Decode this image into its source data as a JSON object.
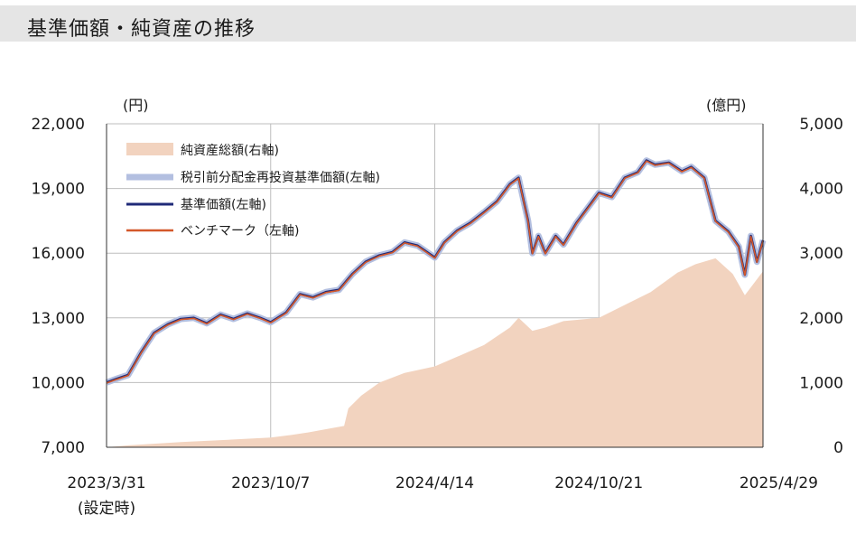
{
  "header": {
    "title": "基準価額・純資産の推移"
  },
  "chart_data": {
    "type": "line",
    "left_unit": "(円)",
    "right_unit": "(億円)",
    "y_left": {
      "min": 7000,
      "max": 22000,
      "ticks": [
        "22,000",
        "19,000",
        "16,000",
        "13,000",
        "10,000",
        "7,000"
      ]
    },
    "y_right": {
      "min": 0,
      "max": 5000,
      "ticks": [
        "5,000",
        "4,000",
        "3,000",
        "2,000",
        "1,000",
        "0"
      ]
    },
    "x_ticks": [
      "2023/3/31",
      "2023/10/7",
      "2024/4/14",
      "2024/10/21",
      "2025/4/29"
    ],
    "x_note": "(設定時)",
    "legend": [
      {
        "label": "純資産総額(右軸)",
        "color": "#f2d3bf",
        "kind": "area"
      },
      {
        "label": "税引前分配金再投資基準価額(左軸)",
        "color": "#b3bfe0",
        "kind": "line"
      },
      {
        "label": "基準価額(左軸)",
        "color": "#1f2a78",
        "kind": "line"
      },
      {
        "label": "ベンチマーク（左軸)",
        "color": "#d4582a",
        "kind": "line"
      }
    ],
    "series": [
      {
        "name": "基準価額",
        "x": [
          "2023/3/31",
          "2023/4/10",
          "2023/4/25",
          "2023/5/10",
          "2023/5/25",
          "2023/6/10",
          "2023/6/25",
          "2023/7/10",
          "2023/7/25",
          "2023/8/10",
          "2023/8/25",
          "2023/9/10",
          "2023/9/25",
          "2023/10/7",
          "2023/10/25",
          "2023/11/10",
          "2023/11/25",
          "2023/12/10",
          "2023/12/25",
          "2024/1/10",
          "2024/1/25",
          "2024/2/10",
          "2024/2/25",
          "2024/3/10",
          "2024/3/25",
          "2024/4/14",
          "2024/4/25",
          "2024/5/10",
          "2024/5/25",
          "2024/6/10",
          "2024/6/25",
          "2024/7/10",
          "2024/7/20",
          "2024/7/31",
          "2024/8/5",
          "2024/8/12",
          "2024/8/20",
          "2024/9/1",
          "2024/9/10",
          "2024/9/25",
          "2024/10/10",
          "2024/10/21",
          "2024/11/5",
          "2024/11/20",
          "2024/12/5",
          "2024/12/15",
          "2024/12/25",
          "2025/1/10",
          "2025/1/25",
          "2025/2/5",
          "2025/2/20",
          "2025/3/5",
          "2025/3/20",
          "2025/4/1",
          "2025/4/8",
          "2025/4/15",
          "2025/4/22",
          "2025/4/29"
        ],
        "values": [
          10000,
          10150,
          10350,
          11400,
          12300,
          12700,
          12950,
          13000,
          12750,
          13150,
          12950,
          13200,
          13000,
          12800,
          13250,
          14100,
          13950,
          14200,
          14300,
          15050,
          15600,
          15900,
          16050,
          16500,
          16350,
          15800,
          16500,
          17050,
          17400,
          17900,
          18400,
          19200,
          19500,
          17500,
          16000,
          16800,
          16000,
          16800,
          16400,
          17400,
          18200,
          18800,
          18600,
          19500,
          19750,
          20300,
          20100,
          20200,
          19800,
          20000,
          19500,
          17500,
          17000,
          16300,
          15000,
          16800,
          15600,
          16600
        ]
      }
    ],
    "net_assets": {
      "name": "純資産総額",
      "x": [
        "2023/3/31",
        "2023/4/25",
        "2023/6/25",
        "2023/8/25",
        "2023/10/7",
        "2023/10/31",
        "2023/11/20",
        "2023/12/10",
        "2023/12/31",
        "2024/1/5",
        "2024/1/20",
        "2024/2/10",
        "2024/3/10",
        "2024/4/14",
        "2024/5/10",
        "2024/6/10",
        "2024/7/10",
        "2024/7/20",
        "2024/8/5",
        "2024/8/20",
        "2024/9/10",
        "2024/10/21",
        "2024/11/20",
        "2024/12/20",
        "2025/1/20",
        "2025/2/10",
        "2025/3/5",
        "2025/3/25",
        "2025/4/8",
        "2025/4/29"
      ],
      "values": [
        0,
        30,
        80,
        120,
        150,
        190,
        230,
        280,
        330,
        600,
        800,
        1000,
        1150,
        1250,
        1400,
        1580,
        1850,
        2000,
        1800,
        1850,
        1950,
        2000,
        2200,
        2400,
        2700,
        2830,
        2920,
        2680,
        2350,
        2720
      ]
    }
  }
}
